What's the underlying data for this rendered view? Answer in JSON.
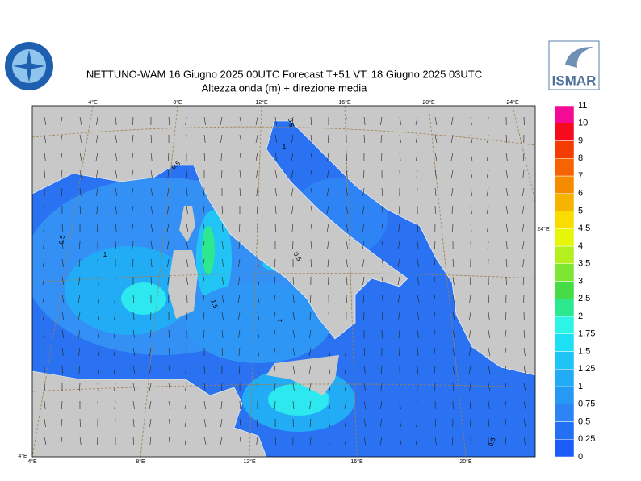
{
  "header": {
    "title": "NETTUNO-WAM  16   Giugno  2025 00UTC Forecast T+51 VT: 18   Giugno  2025 03UTC",
    "subtitle": "Altezza onda (m) + direzione media",
    "logo_text": "ISMAR"
  },
  "map": {
    "top_lon_labels": [
      "4°E",
      "8°E",
      "12°E",
      "16°E",
      "20°E",
      "24°E"
    ],
    "bottom_lon_labels": [
      "4°E",
      "8°E",
      "12°E",
      "16°E",
      "20°E"
    ],
    "corner_label": "4°E",
    "right_label": "24°E",
    "contour_labels": [
      "0.5",
      "1",
      "1.5",
      "1",
      "0.5",
      "0.5",
      "1",
      "0.5",
      "0.5"
    ]
  },
  "colorbar": {
    "labels": [
      "0",
      "0.25",
      "0.5",
      "0.75",
      "1",
      "1.25",
      "1.5",
      "1.75",
      "2",
      "2.5",
      "3",
      "3.5",
      "4",
      "4.5",
      "5",
      "6",
      "7",
      "8",
      "9",
      "10",
      "11"
    ],
    "colors": [
      "#1a5cf5",
      "#2470f5",
      "#2e84f5",
      "#2898f5",
      "#22acf5",
      "#1ec4f5",
      "#1ee0f5",
      "#2cf5e6",
      "#2ee890",
      "#46dc46",
      "#7ce632",
      "#b4f01e",
      "#e6f50a",
      "#fadc00",
      "#f5b400",
      "#f58c00",
      "#f56400",
      "#f53c00",
      "#f50a1e",
      "#f50a96",
      "#f50acd"
    ]
  }
}
